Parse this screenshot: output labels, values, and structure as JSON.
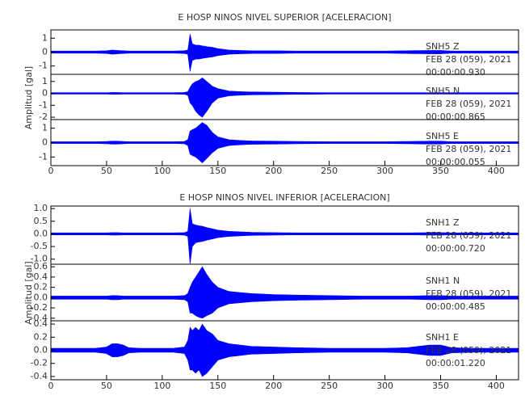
{
  "chart_data": [
    {
      "type": "area",
      "title": "E HOSP NINOS NIVEL SUPERIOR [ACELERACION]",
      "y_label": "Amplitud [gal]",
      "xlim": [
        0,
        420
      ],
      "xticks": [
        0,
        50,
        100,
        150,
        200,
        250,
        300,
        350,
        400
      ],
      "x": [
        0,
        10,
        20,
        30,
        40,
        50,
        55,
        60,
        65,
        70,
        80,
        90,
        100,
        110,
        120,
        123,
        125,
        127,
        130,
        133,
        136,
        140,
        145,
        150,
        160,
        170,
        180,
        200,
        220,
        250,
        280,
        300,
        320,
        340,
        350,
        360,
        380,
        400,
        420
      ],
      "panels": [
        {
          "station": "SNH5  Z",
          "date": "FEB 28 (059), 2021",
          "time": "00:00:00.930",
          "color": "#0000ff",
          "ylim": [
            -1.6,
            1.6
          ],
          "yticks": [
            1,
            0,
            -1
          ],
          "max": [
            0.08,
            0.08,
            0.08,
            0.08,
            0.08,
            0.1,
            0.15,
            0.12,
            0.1,
            0.08,
            0.08,
            0.08,
            0.08,
            0.08,
            0.1,
            0.15,
            1.3,
            0.6,
            0.5,
            0.5,
            0.45,
            0.4,
            0.35,
            0.25,
            0.15,
            0.12,
            0.1,
            0.1,
            0.08,
            0.08,
            0.08,
            0.08,
            0.1,
            0.12,
            0.12,
            0.08,
            0.08,
            0.08,
            0.08
          ],
          "min": [
            -0.08,
            -0.08,
            -0.08,
            -0.08,
            -0.08,
            -0.1,
            -0.15,
            -0.12,
            -0.1,
            -0.08,
            -0.08,
            -0.08,
            -0.08,
            -0.08,
            -0.1,
            -0.15,
            -1.4,
            -0.6,
            -0.5,
            -0.5,
            -0.45,
            -0.4,
            -0.35,
            -0.25,
            -0.15,
            -0.12,
            -0.1,
            -0.1,
            -0.08,
            -0.08,
            -0.08,
            -0.08,
            -0.1,
            -0.12,
            -0.12,
            -0.08,
            -0.08,
            -0.08,
            -0.08
          ]
        },
        {
          "station": "SNH5  N",
          "date": "FEB 28 (059), 2021",
          "time": "00:00:00.865",
          "color": "#0000ff",
          "ylim": [
            -2.2,
            1.6
          ],
          "yticks": [
            1,
            0,
            -1,
            -2
          ],
          "max": [
            0.06,
            0.06,
            0.06,
            0.06,
            0.06,
            0.06,
            0.08,
            0.08,
            0.06,
            0.06,
            0.06,
            0.06,
            0.06,
            0.06,
            0.08,
            0.15,
            0.5,
            0.8,
            1.0,
            1.1,
            1.3,
            1.0,
            0.6,
            0.4,
            0.2,
            0.15,
            0.12,
            0.1,
            0.08,
            0.06,
            0.06,
            0.06,
            0.06,
            0.06,
            0.06,
            0.06,
            0.06,
            0.06,
            0.06
          ],
          "min": [
            -0.06,
            -0.06,
            -0.06,
            -0.06,
            -0.06,
            -0.06,
            -0.08,
            -0.08,
            -0.06,
            -0.06,
            -0.06,
            -0.06,
            -0.06,
            -0.06,
            -0.08,
            -0.15,
            -0.8,
            -1.0,
            -1.5,
            -1.8,
            -2.0,
            -1.5,
            -0.8,
            -0.4,
            -0.2,
            -0.15,
            -0.12,
            -0.1,
            -0.08,
            -0.06,
            -0.06,
            -0.06,
            -0.06,
            -0.06,
            -0.06,
            -0.06,
            -0.06,
            -0.06,
            -0.06
          ]
        },
        {
          "station": "SNH5  E",
          "date": "FEB 28 (059), 2021",
          "time": "00:00:00.055",
          "color": "#0000ff",
          "ylim": [
            -1.6,
            1.6
          ],
          "yticks": [
            1,
            0,
            -1
          ],
          "max": [
            0.06,
            0.06,
            0.06,
            0.06,
            0.06,
            0.08,
            0.1,
            0.1,
            0.08,
            0.06,
            0.06,
            0.06,
            0.06,
            0.06,
            0.08,
            0.2,
            0.8,
            0.9,
            1.0,
            1.2,
            1.4,
            1.2,
            0.7,
            0.4,
            0.2,
            0.15,
            0.12,
            0.1,
            0.08,
            0.06,
            0.06,
            0.06,
            0.08,
            0.1,
            0.1,
            0.06,
            0.06,
            0.06,
            0.06
          ],
          "min": [
            -0.06,
            -0.06,
            -0.06,
            -0.06,
            -0.06,
            -0.08,
            -0.1,
            -0.1,
            -0.08,
            -0.06,
            -0.06,
            -0.06,
            -0.06,
            -0.06,
            -0.08,
            -0.2,
            -0.8,
            -0.9,
            -1.0,
            -1.2,
            -1.4,
            -1.1,
            -0.7,
            -0.4,
            -0.2,
            -0.15,
            -0.12,
            -0.1,
            -0.08,
            -0.06,
            -0.06,
            -0.06,
            -0.08,
            -0.1,
            -0.1,
            -0.06,
            -0.06,
            -0.06,
            -0.06
          ]
        }
      ]
    },
    {
      "type": "area",
      "title": "E HOSP NINOS NIVEL INFERIOR [ACELERACION]",
      "y_label": "Amplitud [gal]",
      "xlim": [
        0,
        420
      ],
      "xticks": [
        0,
        50,
        100,
        150,
        200,
        250,
        300,
        350,
        400
      ],
      "x": [
        0,
        10,
        20,
        30,
        40,
        50,
        55,
        60,
        65,
        70,
        80,
        90,
        100,
        110,
        120,
        123,
        125,
        127,
        130,
        133,
        136,
        140,
        145,
        150,
        160,
        170,
        180,
        200,
        220,
        250,
        280,
        300,
        320,
        340,
        350,
        360,
        380,
        400,
        420
      ],
      "panels": [
        {
          "station": "SNH1  Z",
          "date": "FEB 28 (059), 2021",
          "time": "00:00:00.720",
          "color": "#0000ff",
          "ylim": [
            -1.2,
            1.1
          ],
          "yticks": [
            {
              "value": 1,
              "label": "1.0"
            },
            0.5,
            {
              "value": 0,
              "label": "0.0"
            },
            -0.5,
            {
              "value": -1,
              "label": "-1.0"
            }
          ],
          "max": [
            0.04,
            0.04,
            0.04,
            0.04,
            0.04,
            0.04,
            0.05,
            0.05,
            0.04,
            0.04,
            0.04,
            0.04,
            0.04,
            0.04,
            0.05,
            0.1,
            1.0,
            0.4,
            0.35,
            0.32,
            0.3,
            0.25,
            0.2,
            0.15,
            0.1,
            0.08,
            0.06,
            0.05,
            0.04,
            0.04,
            0.04,
            0.04,
            0.04,
            0.05,
            0.05,
            0.04,
            0.04,
            0.04,
            0.04
          ],
          "min": [
            -0.04,
            -0.04,
            -0.04,
            -0.04,
            -0.04,
            -0.04,
            -0.05,
            -0.05,
            -0.04,
            -0.04,
            -0.04,
            -0.04,
            -0.04,
            -0.04,
            -0.05,
            -0.1,
            -1.2,
            -0.5,
            -0.35,
            -0.32,
            -0.3,
            -0.25,
            -0.2,
            -0.15,
            -0.1,
            -0.08,
            -0.06,
            -0.05,
            -0.04,
            -0.04,
            -0.04,
            -0.04,
            -0.04,
            -0.05,
            -0.05,
            -0.04,
            -0.04,
            -0.04,
            -0.04
          ]
        },
        {
          "station": "SNH1  N",
          "date": "FEB 28 (059), 2021",
          "time": "00:00:00.485",
          "color": "#0000ff",
          "ylim": [
            -0.45,
            0.65
          ],
          "yticks": [
            0.6,
            0.4,
            0.2,
            {
              "value": 0,
              "label": "0.0"
            },
            -0.2,
            -0.4
          ],
          "max": [
            0.03,
            0.03,
            0.03,
            0.03,
            0.03,
            0.03,
            0.04,
            0.04,
            0.03,
            0.03,
            0.03,
            0.03,
            0.03,
            0.03,
            0.04,
            0.08,
            0.2,
            0.3,
            0.4,
            0.5,
            0.6,
            0.45,
            0.3,
            0.2,
            0.12,
            0.1,
            0.08,
            0.06,
            0.05,
            0.04,
            0.03,
            0.03,
            0.03,
            0.04,
            0.04,
            0.03,
            0.03,
            0.03,
            0.03
          ],
          "min": [
            -0.03,
            -0.03,
            -0.03,
            -0.03,
            -0.03,
            -0.03,
            -0.04,
            -0.04,
            -0.03,
            -0.03,
            -0.03,
            -0.03,
            -0.03,
            -0.03,
            -0.04,
            -0.08,
            -0.3,
            -0.3,
            -0.35,
            -0.38,
            -0.4,
            -0.35,
            -0.3,
            -0.2,
            -0.12,
            -0.1,
            -0.08,
            -0.06,
            -0.05,
            -0.04,
            -0.03,
            -0.03,
            -0.03,
            -0.04,
            -0.04,
            -0.03,
            -0.03,
            -0.03,
            -0.03
          ]
        },
        {
          "station": "SNH1  E",
          "date": "FEB 28 (059), 2021",
          "time": "00:00:01.220",
          "color": "#0000ff",
          "ylim": [
            -0.45,
            0.45
          ],
          "yticks": [
            0.4,
            0.2,
            {
              "value": 0,
              "label": "0.0"
            },
            -0.2,
            -0.4
          ],
          "max": [
            0.03,
            0.03,
            0.03,
            0.03,
            0.03,
            0.05,
            0.1,
            0.1,
            0.08,
            0.04,
            0.03,
            0.03,
            0.03,
            0.03,
            0.05,
            0.15,
            0.35,
            0.3,
            0.35,
            0.3,
            0.4,
            0.3,
            0.25,
            0.15,
            0.1,
            0.08,
            0.06,
            0.05,
            0.04,
            0.03,
            0.03,
            0.03,
            0.04,
            0.08,
            0.08,
            0.04,
            0.03,
            0.03,
            0.03
          ],
          "min": [
            -0.03,
            -0.03,
            -0.03,
            -0.03,
            -0.03,
            -0.05,
            -0.1,
            -0.1,
            -0.08,
            -0.04,
            -0.03,
            -0.03,
            -0.03,
            -0.03,
            -0.05,
            -0.15,
            -0.3,
            -0.3,
            -0.35,
            -0.3,
            -0.4,
            -0.35,
            -0.25,
            -0.15,
            -0.1,
            -0.08,
            -0.06,
            -0.05,
            -0.04,
            -0.03,
            -0.03,
            -0.03,
            -0.04,
            -0.08,
            -0.08,
            -0.04,
            -0.03,
            -0.03,
            -0.03
          ]
        }
      ]
    }
  ]
}
